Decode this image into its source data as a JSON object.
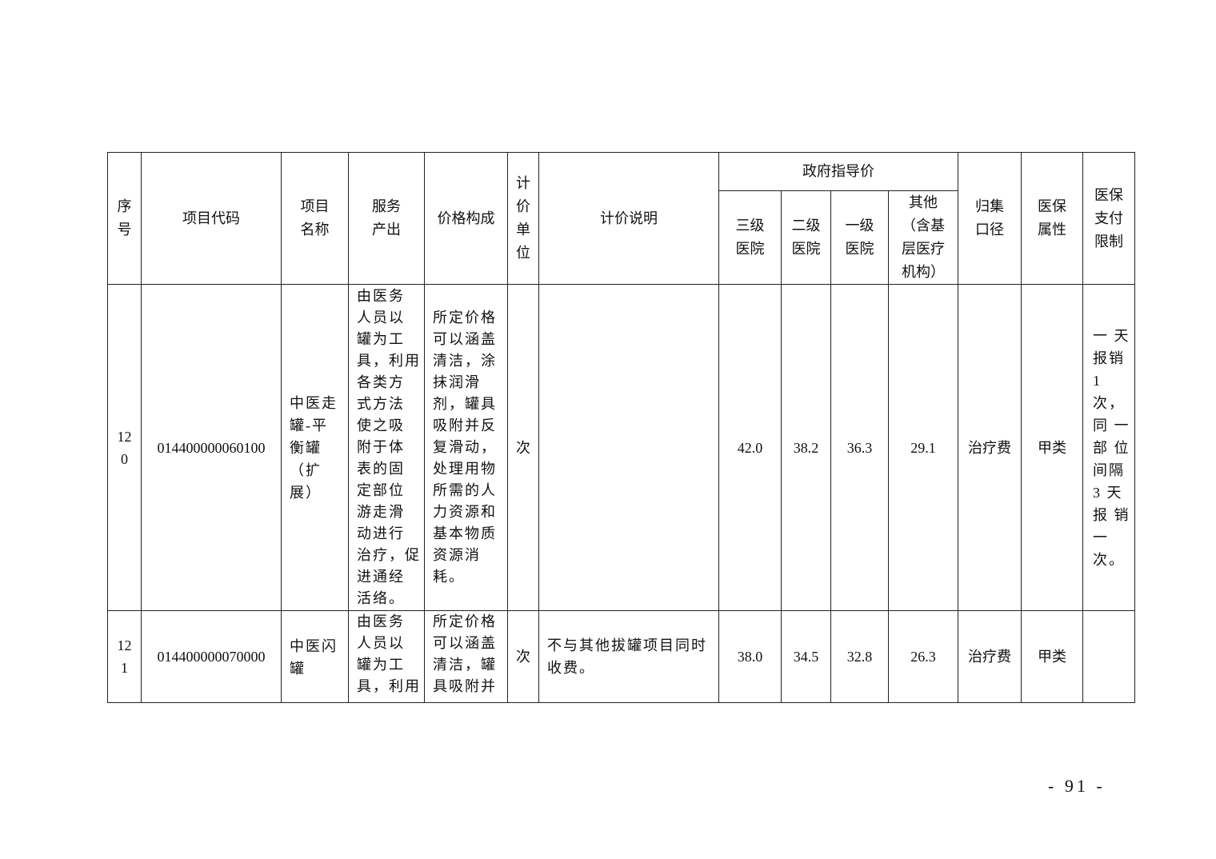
{
  "header": {
    "seq": "序\n号",
    "code": "项目代码",
    "name": "项目\n名称",
    "output": "服务\n产出",
    "composition": "价格构成",
    "unit": "计\n价\n单\n位",
    "desc": "计价说明",
    "gov_price": "政府指导价",
    "level3": "三级\n医院",
    "level2": "二级\n医院",
    "level1": "一级\n医院",
    "other": "其他\n（含基\n层医疗\n机构）",
    "category": "归集\n口径",
    "insurance": "医保\n属性",
    "limit": "医保\n支付\n限制"
  },
  "rows": [
    {
      "seq": "12\n0",
      "code": "014400000060100",
      "name": "中医走\n罐-平\n衡罐\n（扩\n展）",
      "output": "由医务\n人员以\n罐为工\n具，利用\n各类方\n式方法\n使之吸\n附于体\n表的固\n定部位\n游走滑\n动进行\n治疗，促\n进通经\n活络。",
      "composition": "所定价格\n可以涵盖\n清洁，涂\n抹润滑\n剂，罐具\n吸附并反\n复滑动，\n处理用物\n所需的人\n力资源和\n基本物质\n资源消\n耗。",
      "unit": "次",
      "desc": "",
      "level3": "42.0",
      "level2": "38.2",
      "level1": "36.3",
      "other": "29.1",
      "category": "治疗费",
      "insurance": "甲类",
      "limit": "一 天\n报销\n1 次，\n同 一\n部 位\n间隔\n3  天\n报 销\n一\n次。"
    },
    {
      "seq": "12\n1",
      "code": "014400000070000",
      "name": "中医闪\n罐",
      "output": "由医务\n人员以\n罐为工\n具，利用",
      "composition": "所定价格\n可以涵盖\n清洁，罐\n具吸附并",
      "unit": "次",
      "desc": "不与其他拔罐项目同时\n收费。",
      "level3": "38.0",
      "level2": "34.5",
      "level1": "32.8",
      "other": "26.3",
      "category": "治疗费",
      "insurance": "甲类",
      "limit": ""
    }
  ],
  "page_number": "- 91 -"
}
